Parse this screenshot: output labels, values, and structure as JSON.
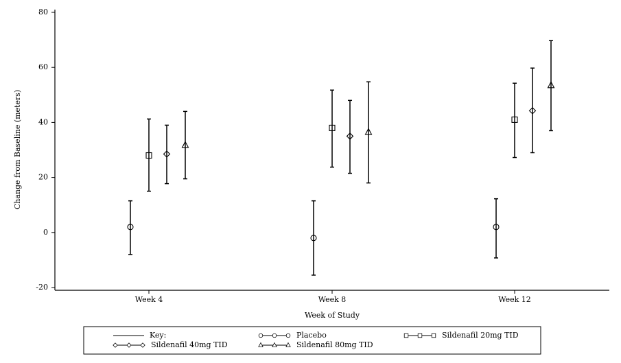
{
  "chart_data": {
    "type": "errorbar",
    "x_label": "Week of Study",
    "y_label": "Change from Baseline (meters)",
    "categories": [
      "Week 4",
      "Week 8",
      "Week 12"
    ],
    "ylim": [
      -21,
      81
    ],
    "yticks": [
      -20,
      0,
      20,
      40,
      60,
      80
    ],
    "legend_title": "Key:",
    "series": [
      {
        "name": "Placebo",
        "color": "#000000",
        "marker": "circle",
        "values": [
          2,
          -2,
          2
        ],
        "lower": [
          -8,
          -15.5,
          -9.25
        ],
        "upper": [
          11.5,
          11.5,
          12.25
        ]
      },
      {
        "name": "Sildenafil 20mg TID",
        "color": "#000000",
        "marker": "square",
        "values": [
          28,
          38,
          41
        ],
        "lower": [
          15,
          23.75,
          27.25
        ],
        "upper": [
          41.25,
          51.75,
          54.25
        ]
      },
      {
        "name": "Sildenafil 40mg TID",
        "color": "#000000",
        "marker": "diamond",
        "values": [
          28.5,
          35,
          44.25
        ],
        "lower": [
          17.75,
          21.5,
          29
        ],
        "upper": [
          39,
          48,
          59.75
        ]
      },
      {
        "name": "Sildenafil 80mg TID",
        "color": "#000000",
        "marker": "triangle",
        "values": [
          31.75,
          36.5,
          53.5
        ],
        "lower": [
          19.5,
          18,
          37
        ],
        "upper": [
          44,
          54.75,
          69.75
        ]
      }
    ]
  }
}
